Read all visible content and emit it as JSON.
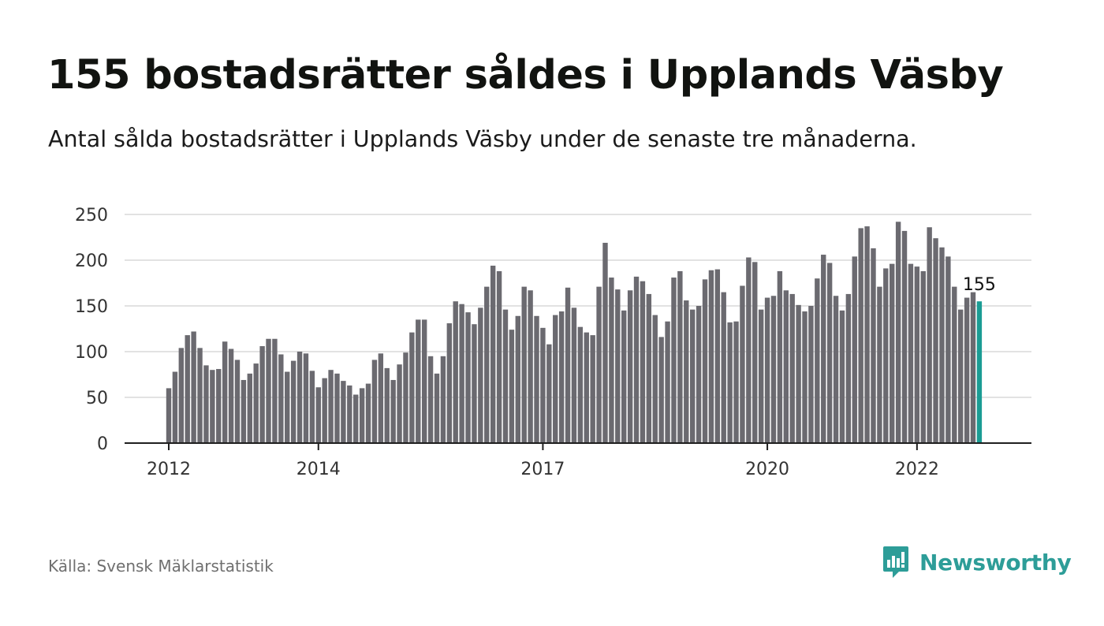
{
  "title": "155 bostadsrätter såldes i Upplands Väsby",
  "subtitle": "Antal sålda bostadsrätter i Upplands Väsby under de senaste tre månaderna.",
  "source": "Källa: Svensk Mäklarstatistik",
  "brand": {
    "name": "Newsworthy",
    "icon": "newsworthy-logo-icon",
    "color": "#2d9d98"
  },
  "colors": {
    "bar": "#6b6a70",
    "highlight": "#1a9c94",
    "grid": "#d9d9d9",
    "axis": "#1f1f1f"
  },
  "chart_data": {
    "type": "bar",
    "title": "155 bostadsrätter såldes i Upplands Väsby",
    "subtitle": "Antal sålda bostadsrätter i Upplands Väsby under de senaste tre månaderna.",
    "xlabel": "",
    "ylabel": "",
    "ylim": [
      0,
      250
    ],
    "y_ticks": [
      "0",
      "50",
      "100",
      "150",
      "200",
      "250"
    ],
    "x_tick_labels": [
      {
        "index": 0,
        "label": "2012"
      },
      {
        "index": 24,
        "label": "2014"
      },
      {
        "index": 60,
        "label": "2017"
      },
      {
        "index": 96,
        "label": "2020"
      },
      {
        "index": 120,
        "label": "2022"
      }
    ],
    "grid": true,
    "legend": "none",
    "highlight_index": 130,
    "highlight_label": "155",
    "values": [
      60,
      78,
      104,
      118,
      122,
      104,
      85,
      80,
      81,
      111,
      103,
      91,
      69,
      76,
      87,
      106,
      114,
      114,
      97,
      78,
      90,
      100,
      98,
      79,
      61,
      71,
      80,
      76,
      68,
      63,
      53,
      60,
      65,
      91,
      98,
      82,
      69,
      86,
      99,
      121,
      135,
      135,
      95,
      76,
      95,
      131,
      155,
      152,
      143,
      130,
      148,
      171,
      194,
      188,
      146,
      124,
      139,
      171,
      167,
      139,
      126,
      108,
      140,
      144,
      170,
      148,
      127,
      121,
      118,
      171,
      219,
      181,
      168,
      145,
      167,
      182,
      177,
      163,
      140,
      116,
      133,
      181,
      188,
      156,
      146,
      150,
      179,
      189,
      190,
      165,
      132,
      133,
      172,
      203,
      198,
      146,
      159,
      161,
      188,
      167,
      163,
      151,
      144,
      150,
      180,
      206,
      197,
      161,
      145,
      163,
      204,
      235,
      237,
      213,
      171,
      191,
      196,
      242,
      232,
      196,
      193,
      188,
      236,
      224,
      214,
      204,
      171,
      146,
      159,
      165,
      155
    ]
  }
}
